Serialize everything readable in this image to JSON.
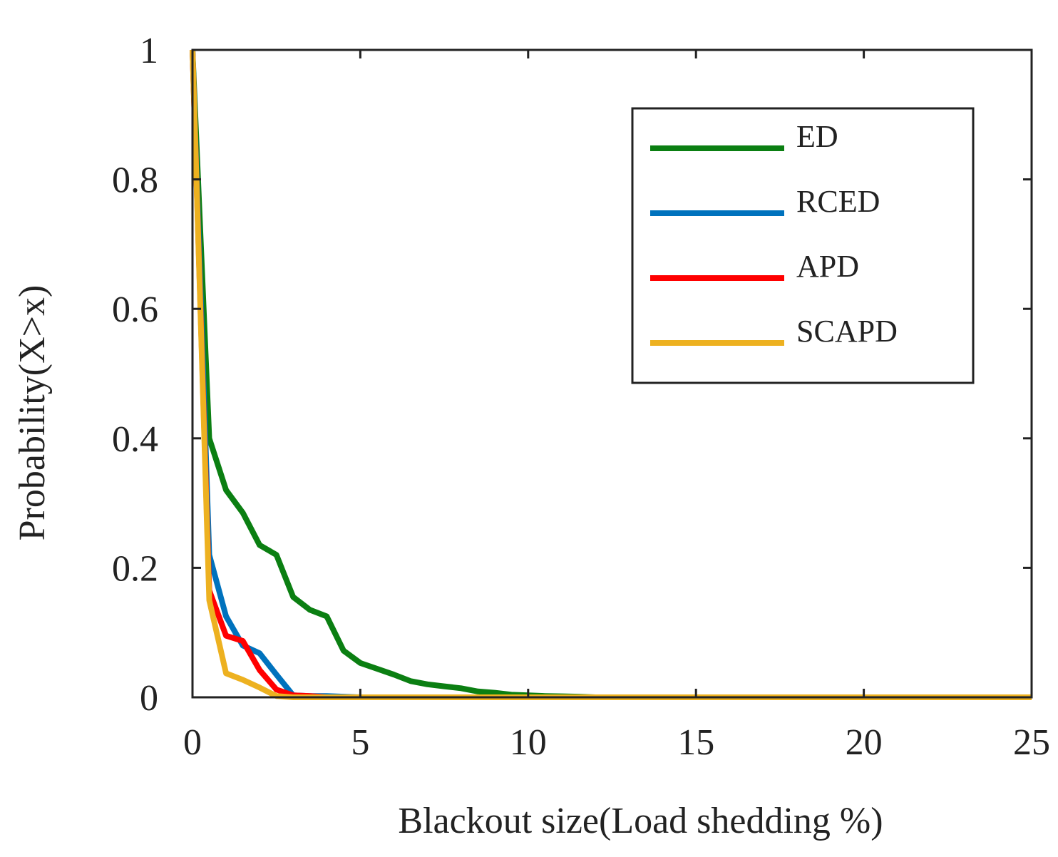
{
  "chart_data": {
    "type": "line",
    "title": "",
    "xlabel": "Blackout size(Load shedding %)",
    "ylabel": "Probability(X>x)",
    "xlim": [
      0,
      25
    ],
    "ylim": [
      0,
      1
    ],
    "xticks": [
      0,
      5,
      10,
      15,
      20,
      25
    ],
    "xtick_labels": [
      "0",
      "5",
      "10",
      "15",
      "20",
      "25"
    ],
    "yticks": [
      0,
      0.2,
      0.4,
      0.6,
      0.8,
      1
    ],
    "ytick_labels": [
      "0",
      "0.2",
      "0.4",
      "0.6",
      "0.8",
      "1"
    ],
    "grid": false,
    "legend_position": "top-right",
    "series": [
      {
        "name": "ED",
        "color": "#0b7f12",
        "x": [
          0,
          0.5,
          1.0,
          1.5,
          2.0,
          2.5,
          3.0,
          3.5,
          4.0,
          4.5,
          5.0,
          5.5,
          6.0,
          6.5,
          7.0,
          7.5,
          8.0,
          8.5,
          9.0,
          9.5,
          10.0,
          10.5,
          11.0,
          11.5,
          12.0,
          25.0
        ],
        "y": [
          1.0,
          0.4,
          0.32,
          0.285,
          0.235,
          0.22,
          0.155,
          0.135,
          0.125,
          0.072,
          0.053,
          0.044,
          0.035,
          0.025,
          0.02,
          0.017,
          0.014,
          0.009,
          0.007,
          0.004,
          0.003,
          0.002,
          0.0015,
          0.001,
          0.0,
          0.0
        ]
      },
      {
        "name": "RCED",
        "color": "#0072bd",
        "x": [
          0,
          0.5,
          1.0,
          1.5,
          2.0,
          2.5,
          3.0,
          3.5,
          4.0,
          4.5,
          5.0,
          25.0
        ],
        "y": [
          1.0,
          0.22,
          0.125,
          0.08,
          0.068,
          0.035,
          0.003,
          0.002,
          0.002,
          0.001,
          0.0,
          0.0
        ]
      },
      {
        "name": "APD",
        "color": "#ff0000",
        "x": [
          0,
          0.5,
          1.0,
          1.5,
          2.0,
          2.5,
          3.0,
          3.5,
          4.0,
          25.0
        ],
        "y": [
          1.0,
          0.165,
          0.095,
          0.087,
          0.042,
          0.012,
          0.003,
          0.002,
          0.0,
          0.0
        ]
      },
      {
        "name": "SCAPD",
        "color": "#edb120",
        "x": [
          0,
          0.5,
          1.0,
          1.5,
          2.0,
          2.5,
          3.0,
          25.0
        ],
        "y": [
          1.0,
          0.15,
          0.037,
          0.027,
          0.015,
          0.002,
          0.0,
          0.0
        ]
      }
    ]
  }
}
